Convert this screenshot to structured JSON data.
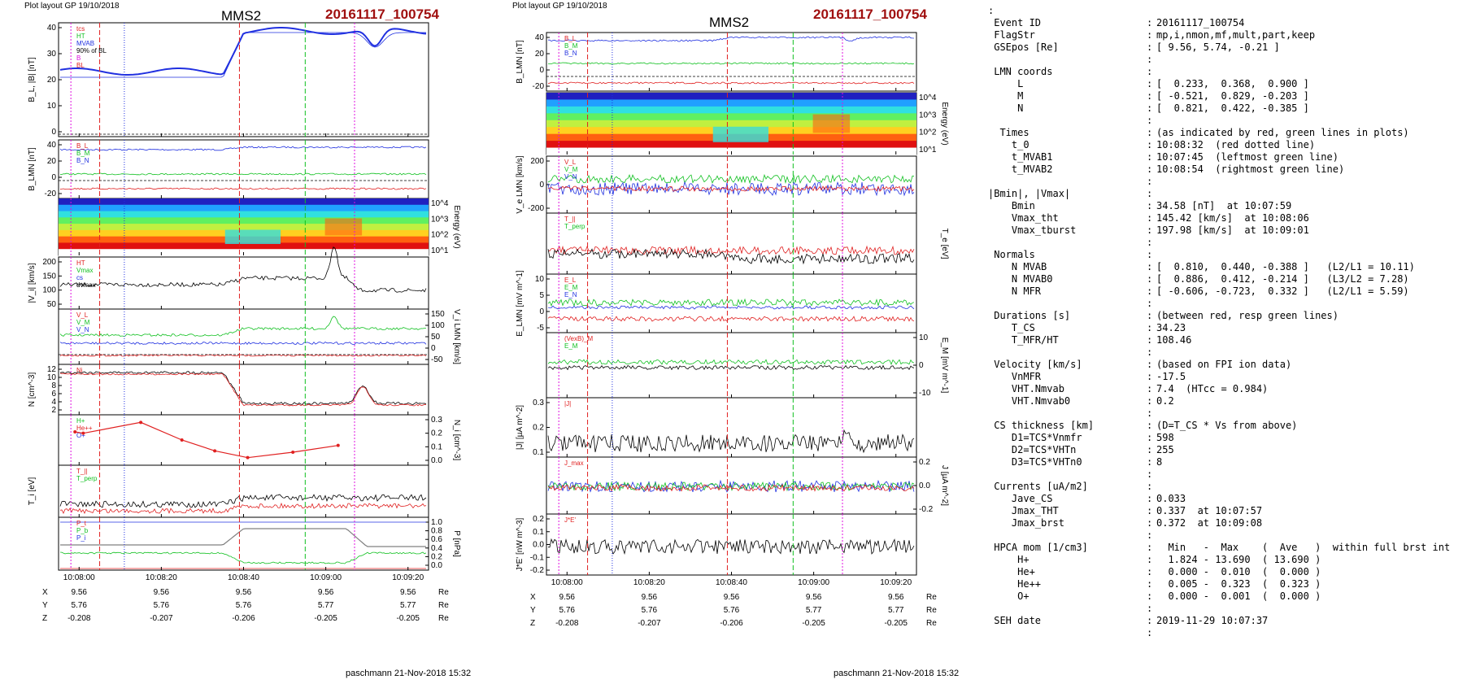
{
  "panel_left": {
    "layout_label": "Plot layout GP 19/10/2018",
    "title": "MMS2",
    "event_title": "20161117_100754",
    "author": "paschmann 21-Nov-2018 15:32"
  },
  "panel_right": {
    "layout_label": "Plot layout GP 19/10/2018",
    "title": "MMS2",
    "event_title": "20161117_100754",
    "author": "paschmann 21-Nov-2018 15:32"
  },
  "colors": {
    "blue": "#2030e0",
    "red": "#e02020",
    "green": "#10c020",
    "black": "#000000",
    "magenta": "#e010e0",
    "gray": "#808080"
  },
  "chart_data": [
    {
      "type": "line",
      "panels": [
        {
          "ylabel": "B_L, |B| [nT]",
          "yticks": [
            "40",
            "30",
            "20",
            "10",
            "0"
          ],
          "legend": [
            "tcs",
            "HT",
            "MVAB",
            "90% of BL",
            "B",
            "BL"
          ]
        },
        {
          "ylabel": "B_LMN [nT]",
          "yticks": [
            "40",
            "20",
            "0",
            "-20"
          ],
          "legend": [
            "B_L",
            "B_M",
            "B_N"
          ]
        },
        {
          "type": "heatmap",
          "ylabel": "Energy (eV)",
          "yticks": [
            "10^4",
            "10^3",
            "10^2",
            "10^1"
          ]
        },
        {
          "ylabel": "|V_i| [km/s]",
          "yticks": [
            "200",
            "150",
            "100",
            "50"
          ],
          "legend": [
            "HT",
            "Vmax",
            "cs",
            "dvmax"
          ]
        },
        {
          "ylabel": "V_i LMN [km/s]",
          "yticks": [
            "150",
            "100",
            "50",
            "0",
            "-50"
          ],
          "legend": [
            "V_L",
            "V_M",
            "V_N"
          ]
        },
        {
          "ylabel": "N [cm^-3]",
          "yticks": [
            "12",
            "10",
            "8",
            "6",
            "4",
            "2"
          ],
          "legend": [
            "Ni"
          ]
        },
        {
          "ylabel": "N_i [cm^-3]",
          "yticks": [
            "0.3",
            "0.2",
            "0.1",
            "0.0"
          ],
          "legend": [
            "H+",
            "He++",
            "O+"
          ],
          "series": [
            {
              "name": "He++",
              "x": [
                "10:07:59",
                "10:08:01",
                "10:08:15",
                "10:08:25",
                "10:08:33",
                "10:08:41",
                "10:08:52",
                "10:09:03"
              ],
              "y": [
                0.21,
                0.2,
                0.28,
                0.15,
                0.07,
                0.02,
                0.06,
                0.11
              ]
            }
          ]
        },
        {
          "ylabel": "T_i [eV]",
          "legend": [
            "T_||",
            "T_perp"
          ]
        },
        {
          "ylabel": "P [nPa]",
          "yticks": [
            "1.0",
            "0.8",
            "0.6",
            "0.4",
            "0.2",
            "0.0"
          ],
          "legend": [
            "P_t",
            "P_b",
            "P_i"
          ]
        }
      ],
      "xticks": [
        "10:08:00",
        "10:08:20",
        "10:08:40",
        "10:09:00",
        "10:09:20"
      ],
      "position": {
        "X": [
          "9.56",
          "9.56",
          "9.56",
          "9.56",
          "9.56"
        ],
        "Y": [
          "5.76",
          "5.76",
          "5.76",
          "5.77",
          "5.77"
        ],
        "Z": [
          "-0.208",
          "-0.207",
          "-0.206",
          "-0.205",
          "-0.205"
        ],
        "unit": "Re"
      }
    },
    {
      "type": "line",
      "panels": [
        {
          "ylabel": "B_LMN [nT]",
          "yticks": [
            "40",
            "20",
            "0",
            "-20"
          ],
          "legend": [
            "B_L",
            "B_M",
            "B_N"
          ]
        },
        {
          "type": "heatmap",
          "ylabel": "Energy (eV)",
          "yticks": [
            "10^4",
            "10^3",
            "10^2",
            "10^1"
          ]
        },
        {
          "ylabel": "V_e LMN [km/s]",
          "yticks": [
            "200",
            "0",
            "-200"
          ],
          "legend": [
            "V_L",
            "V_M",
            "V_N"
          ]
        },
        {
          "ylabel": "T_e [eV]",
          "legend": [
            "T_||",
            "T_perp"
          ]
        },
        {
          "ylabel": "E_LMN [mV m^-1]",
          "yticks": [
            "10",
            "5",
            "0",
            "-5"
          ],
          "legend": [
            "E_L",
            "E_M",
            "E_N"
          ]
        },
        {
          "ylabel": "E_M [mV m^-1]",
          "yticks": [
            "10",
            "0",
            "-10"
          ],
          "legend": [
            "(VexB)_M",
            "E_M"
          ]
        },
        {
          "ylabel": "|J| [µA m^-2]",
          "yticks": [
            "0.3",
            "0.2",
            "0.1"
          ],
          "legend": [
            "|J|"
          ]
        },
        {
          "ylabel": "J [µA m^-2]",
          "yticks": [
            "0.2",
            "0.0",
            "-0.2"
          ],
          "legend": [
            "J_max"
          ]
        },
        {
          "ylabel": "J*E' [nW m^-3]",
          "yticks": [
            "0.2",
            "0.1",
            "0.0",
            "-0.1",
            "-0.2"
          ],
          "legend": [
            "J*E'"
          ]
        }
      ],
      "xticks": [
        "10:08:00",
        "10:08:20",
        "10:08:40",
        "10:09:00",
        "10:09:20"
      ],
      "position": {
        "X": [
          "9.56",
          "9.56",
          "9.56",
          "9.56",
          "9.56"
        ],
        "Y": [
          "5.76",
          "5.76",
          "5.76",
          "5.77",
          "5.77"
        ],
        "Z": [
          "-0.208",
          "-0.207",
          "-0.206",
          "-0.205",
          "-0.205"
        ],
        "unit": "Re"
      }
    }
  ],
  "info_lines": [
    {
      "k": ":",
      "c": "",
      "v": ""
    },
    {
      "k": " Event ID",
      "c": ":",
      "v": "20161117_100754"
    },
    {
      "k": " FlagStr",
      "c": ":",
      "v": "mp,i,nmon,mf,mult,part,keep"
    },
    {
      "k": " GSEpos [Re]",
      "c": ":",
      "v": "[ 9.56, 5.74, -0.21 ]"
    },
    {
      "k": "",
      "c": ":",
      "v": ""
    },
    {
      "k": " LMN coords",
      "c": ":",
      "v": ""
    },
    {
      "k": "     L",
      "c": ":",
      "v": "[  0.233,  0.368,  0.900 ]"
    },
    {
      "k": "     M",
      "c": ":",
      "v": "[ -0.521,  0.829, -0.203 ]"
    },
    {
      "k": "     N",
      "c": ":",
      "v": "[  0.821,  0.422, -0.385 ]"
    },
    {
      "k": "",
      "c": ":",
      "v": ""
    },
    {
      "k": "  Times",
      "c": ":",
      "v": "(as indicated by red, green lines in plots)"
    },
    {
      "k": "    t_0",
      "c": ":",
      "v": "10:08:32  (red dotted line)"
    },
    {
      "k": "    t_MVAB1",
      "c": ":",
      "v": "10:07:45  (leftmost green line)"
    },
    {
      "k": "    t_MVAB2",
      "c": ":",
      "v": "10:08:54  (rightmost green line)"
    },
    {
      "k": "",
      "c": ":",
      "v": ""
    },
    {
      "k": "|Bmin|, |Vmax|",
      "c": ":",
      "v": ""
    },
    {
      "k": "    Bmin",
      "c": ":",
      "v": "34.58 [nT]  at 10:07:59"
    },
    {
      "k": "    Vmax_tht",
      "c": ":",
      "v": "145.42 [km/s]  at 10:08:06"
    },
    {
      "k": "    Vmax_tburst",
      "c": ":",
      "v": "197.98 [km/s]  at 10:09:01"
    },
    {
      "k": "",
      "c": ":",
      "v": ""
    },
    {
      "k": " Normals",
      "c": ":",
      "v": ""
    },
    {
      "k": "    N MVAB",
      "c": ":",
      "v": "[  0.810,  0.440, -0.388 ]   (L2/L1 = 10.11)"
    },
    {
      "k": "    N MVAB0",
      "c": ":",
      "v": "[  0.886,  0.412, -0.214 ]   (L3/L2 = 7.28)"
    },
    {
      "k": "    N MFR",
      "c": ":",
      "v": "[ -0.606, -0.723,  0.332 ]   (L2/L1 = 5.59)"
    },
    {
      "k": "",
      "c": ":",
      "v": ""
    },
    {
      "k": " Durations [s]",
      "c": ":",
      "v": "(between red, resp green lines)"
    },
    {
      "k": "    T_CS",
      "c": ":",
      "v": "34.23"
    },
    {
      "k": "    T_MFR/HT",
      "c": ":",
      "v": "108.46"
    },
    {
      "k": "",
      "c": ":",
      "v": ""
    },
    {
      "k": " Velocity [km/s]",
      "c": ":",
      "v": "(based on FPI ion data)"
    },
    {
      "k": "    VnMFR",
      "c": ":",
      "v": "-17.5"
    },
    {
      "k": "    VHT.Nmvab",
      "c": ":",
      "v": "7.4  (HTcc = 0.984)"
    },
    {
      "k": "    VHT.Nmvab0",
      "c": ":",
      "v": "0.2"
    },
    {
      "k": "",
      "c": ":",
      "v": ""
    },
    {
      "k": " CS thickness [km]",
      "c": ":",
      "v": "(D=T_CS * Vs from above)"
    },
    {
      "k": "    D1=TCS*Vnmfr",
      "c": ":",
      "v": "598"
    },
    {
      "k": "    D2=TCS*VHTn",
      "c": ":",
      "v": "255"
    },
    {
      "k": "    D3=TCS*VHTn0",
      "c": ":",
      "v": "8"
    },
    {
      "k": "",
      "c": ":",
      "v": ""
    },
    {
      "k": " Currents [uA/m2]",
      "c": ":",
      "v": ""
    },
    {
      "k": "    Jave_CS",
      "c": ":",
      "v": "0.033"
    },
    {
      "k": "    Jmax_THT",
      "c": ":",
      "v": "0.337  at 10:07:57"
    },
    {
      "k": "    Jmax_brst",
      "c": ":",
      "v": "0.372  at 10:09:08"
    },
    {
      "k": "",
      "c": ":",
      "v": ""
    },
    {
      "k": " HPCA mom [1/cm3]",
      "c": ":",
      "v": "  Min   -  Max    (  Ave   )  within full brst int"
    },
    {
      "k": "     H+",
      "c": ":",
      "v": "  1.824 - 13.690  ( 13.690 )"
    },
    {
      "k": "     He+",
      "c": ":",
      "v": "  0.000 -  0.010  (  0.000 )"
    },
    {
      "k": "     He++",
      "c": ":",
      "v": "  0.005 -  0.323  (  0.323 )"
    },
    {
      "k": "     O+",
      "c": ":",
      "v": "  0.000 -  0.001  (  0.000 )"
    },
    {
      "k": "",
      "c": ":",
      "v": ""
    },
    {
      "k": " SEH date",
      "c": ":",
      "v": "2019-11-29 10:07:37"
    },
    {
      "k": "",
      "c": ":",
      "v": ""
    }
  ]
}
